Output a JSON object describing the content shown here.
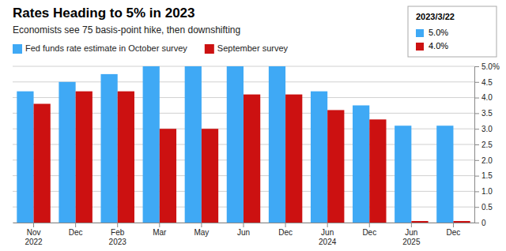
{
  "chart_data": {
    "type": "bar",
    "title": "Rates Heading to 5% in 2023",
    "subtitle": "Economists see 75 basis-point hike, then downshifting",
    "categories": [
      "Nov\n2022",
      "Dec",
      "Feb\n2023",
      "Mar",
      "May",
      "Jun",
      "Dec",
      "Jun\n2024",
      "Dec",
      "Jun\n2025",
      "Dec"
    ],
    "series": [
      {
        "name": "Fed funds rate estimate in October survey",
        "color": "#3FA9F5",
        "values": [
          4.2,
          4.5,
          4.75,
          5.0,
          5.0,
          5.0,
          5.0,
          4.2,
          3.75,
          3.1,
          3.1
        ]
      },
      {
        "name": "September survey",
        "color": "#CC1111",
        "values": [
          3.8,
          4.2,
          4.2,
          3.0,
          3.0,
          4.1,
          4.1,
          3.6,
          3.3,
          0.05,
          0.05
        ]
      }
    ],
    "ylim": [
      0,
      5.0
    ],
    "yticks": [
      0,
      0.5,
      {
        "value": 1.0,
        "label": "1.0"
      },
      1.5,
      {
        "value": 2.0,
        "label": "2.0"
      },
      2.5,
      {
        "value": 3.0,
        "label": "3.0"
      },
      3.5,
      {
        "value": 4.0,
        "label": "4.0"
      },
      4.5,
      {
        "value": 5.0,
        "label": "5.0%"
      }
    ],
    "grid": true,
    "annotation": {
      "title": "2023/3/22",
      "lines": [
        "5.0%",
        "4.0%"
      ]
    }
  }
}
